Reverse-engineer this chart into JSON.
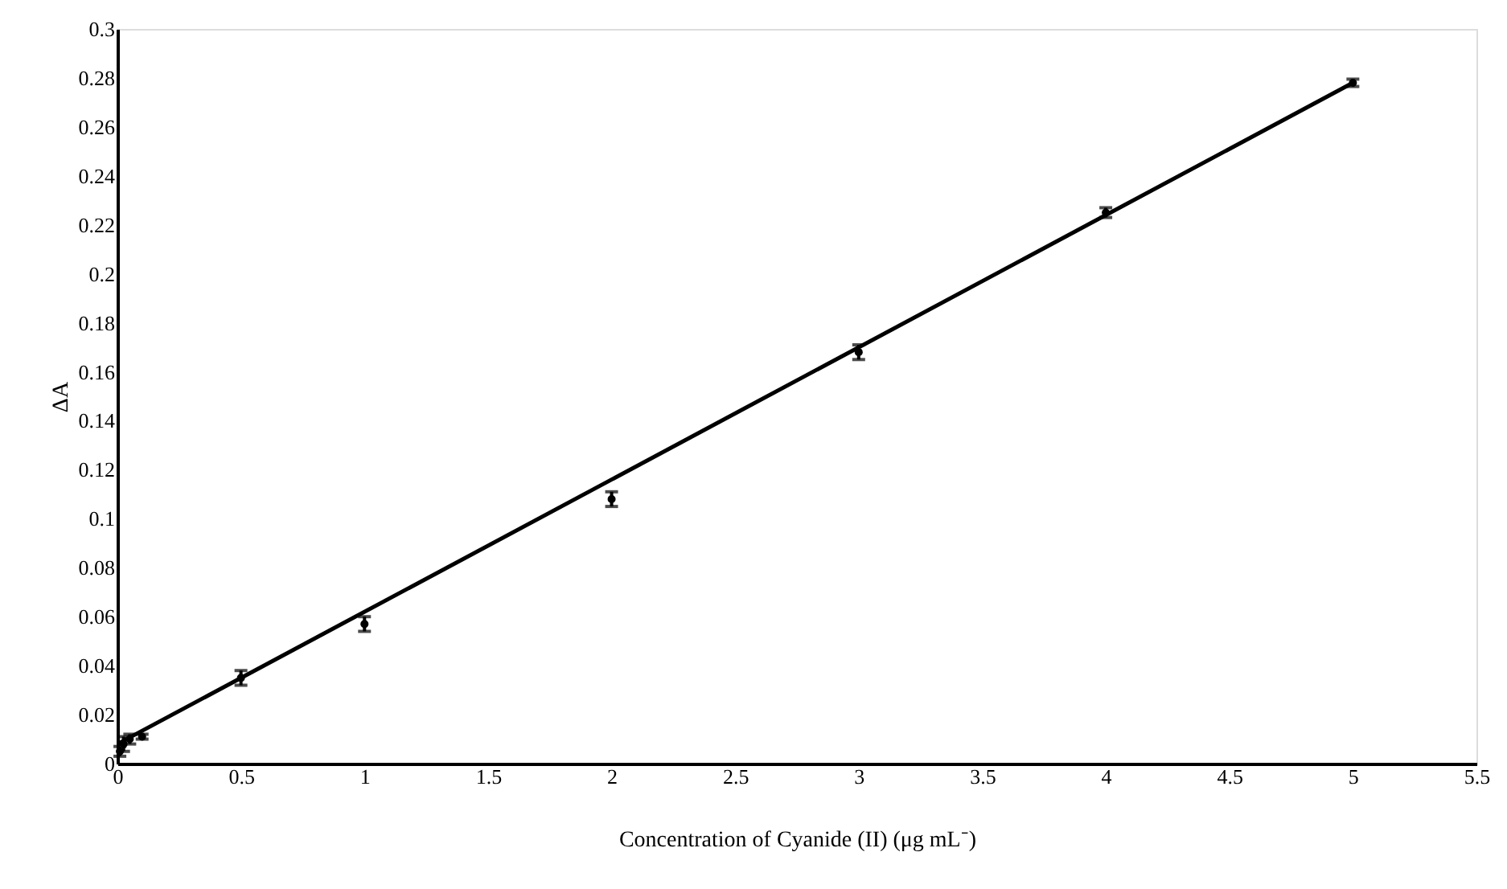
{
  "chart_data": {
    "type": "scatter",
    "xlabel": "Concentration of Cyanide (II) (μg mL⁻)",
    "ylabel": "ΔA",
    "xlim": [
      0,
      5.5
    ],
    "xticks": [
      0,
      0.5,
      1,
      1.5,
      2,
      2.5,
      3,
      3.5,
      4,
      4.5,
      5,
      5.5
    ],
    "ylim": [
      0,
      0.3
    ],
    "yticks": [
      0,
      0.02,
      0.04,
      0.06,
      0.08,
      0.1,
      0.12,
      0.14,
      0.16,
      0.18,
      0.2,
      0.22,
      0.24,
      0.26,
      0.28,
      0.3
    ],
    "grid": false,
    "series": [
      {
        "type": "scatter",
        "color": "#000000",
        "marker": "circle",
        "x": [
          0.01,
          0.025,
          0.05,
          0.1,
          0.5,
          1,
          2,
          3,
          4,
          5
        ],
        "values": [
          0.005,
          0.008,
          0.01,
          0.011,
          0.035,
          0.057,
          0.108,
          0.168,
          0.225,
          0.278
        ],
        "errors": [
          0.002,
          0.003,
          0.002,
          0.001,
          0.003,
          0.003,
          0.003,
          0.003,
          0.002,
          0.0015
        ]
      },
      {
        "type": "line",
        "color": "#000000",
        "line_style": "solid",
        "x": [
          0,
          5
        ],
        "values": [
          0.008,
          0.278
        ]
      }
    ]
  }
}
